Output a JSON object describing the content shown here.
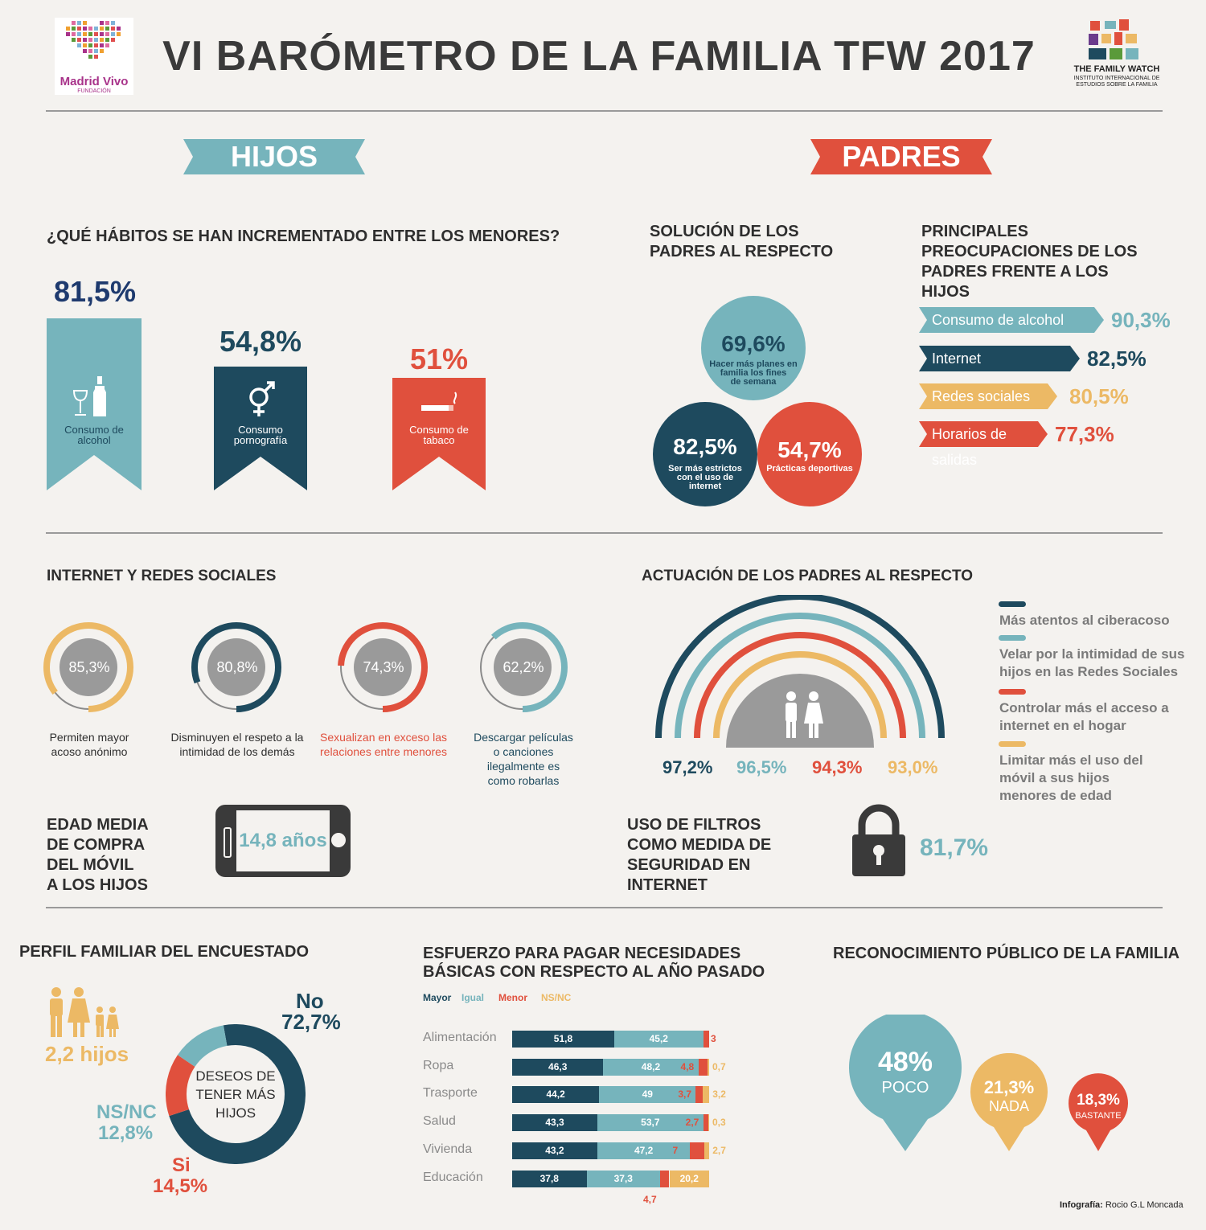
{
  "header": {
    "title": "VI BARÓMETRO DE LA FAMILIA TFW 2017",
    "left_logo": {
      "name": "Madrid Vivo",
      "sub": "FUNDACIÓN"
    },
    "right_logo": {
      "name": "THE FAMILY WATCH",
      "sub1": "INSTITUTO INTERNACIONAL DE",
      "sub2": "ESTUDIOS SOBRE LA FAMILIA"
    }
  },
  "ribbons": {
    "hijos": "HIJOS",
    "padres": "PADRES"
  },
  "habitos": {
    "title": "¿QUÉ HÁBITOS SE HAN INCREMENTADO ENTRE LOS MENORES?",
    "items": [
      {
        "pct": "81,5%",
        "value": 81.5,
        "label1": "Consumo de",
        "label2": "alcohol",
        "icon": "wine-icon",
        "color": "#76b4bc"
      },
      {
        "pct": "54,8%",
        "value": 54.8,
        "label1": "Consumo",
        "label2": "pornografía",
        "icon": "gender-icon",
        "color": "#1e4a5e"
      },
      {
        "pct": "51%",
        "value": 51,
        "label1": "Consumo de",
        "label2": "tabaco",
        "icon": "cigarette-icon",
        "color": "#e0503d"
      }
    ]
  },
  "solucion": {
    "title1": "SOLUCIÓN DE LOS",
    "title2": "PADRES AL RESPECTO",
    "b1": {
      "pct": "69,6%",
      "l1": "Hacer más planes en",
      "l2": "familia los fines",
      "l3": "de semana"
    },
    "b2": {
      "pct": "82,5%",
      "l1": "Ser más estrictos",
      "l2": "con el uso de",
      "l3": "internet"
    },
    "b3": {
      "pct": "54,7%",
      "l1": "Prácticas deportivas"
    }
  },
  "preocupaciones": {
    "title1": "PRINCIPALES",
    "title2": "PREOCUPACIONES DE LOS",
    "title3": "PADRES FRENTE A LOS",
    "title4": "HIJOS",
    "items": [
      {
        "label": "Consumo de alcohol",
        "pct": "90,3%",
        "value": 90.3,
        "color": "#76b4bc"
      },
      {
        "label": "Internet",
        "pct": "82,5%",
        "value": 82.5,
        "color": "#1e4a5e"
      },
      {
        "label": "Redes sociales",
        "pct": "80,5%",
        "value": 80.5,
        "color": "#ecb965"
      },
      {
        "label": "Horarios de salidas",
        "pct": "77,3%",
        "value": 77.3,
        "color": "#e0503d"
      }
    ]
  },
  "internet": {
    "title": "INTERNET Y REDES SOCIALES",
    "rings": [
      {
        "pct": "85,3%",
        "value": 85.3,
        "color": "#ecb965",
        "l1": "Permiten mayor",
        "l2": "acoso anónimo",
        "l3": "",
        "l4": ""
      },
      {
        "pct": "80,8%",
        "value": 80.8,
        "color": "#1e4a5e",
        "l1": "Disminuyen el respeto a la",
        "l2": "intimidad de los demás",
        "l3": "",
        "l4": ""
      },
      {
        "pct": "74,3%",
        "value": 74.3,
        "color": "#e0503d",
        "l1": "Sexualizan en exceso las",
        "l2": "relaciones entre menores",
        "l3": "",
        "l4": ""
      },
      {
        "pct": "62,2%",
        "value": 62.2,
        "color": "#76b4bc",
        "l1": "Descargar películas",
        "l2": "o  canciones",
        "l3": "ilegalmente es",
        "l4": "como robarlas"
      }
    ]
  },
  "edad": {
    "t1": "EDAD MEDIA",
    "t2": "DE COMPRA",
    "t3": "DEL MÓVIL",
    "t4": "A LOS HIJOS",
    "value": "14,8 años"
  },
  "actuacion": {
    "title": "ACTUACIÓN DE LOS PADRES AL RESPECTO",
    "arcs": [
      {
        "pct": "97,2%",
        "value": 97.2,
        "color": "#1e4a5e",
        "label": "Más atentos al ciberacoso"
      },
      {
        "pct": "96,5%",
        "value": 96.5,
        "color": "#76b4bc",
        "label": "Velar por la intimidad de sus hijos en las Redes Sociales"
      },
      {
        "pct": "94,3%",
        "value": 94.3,
        "color": "#e0503d",
        "label": "Controlar más el acceso a internet en el hogar"
      },
      {
        "pct": "93,0%",
        "value": 93.0,
        "color": "#ecb965",
        "label": "Limitar más el uso del móvil a sus hijos menores de edad"
      }
    ],
    "legend_lines": [
      [
        "Más atentos al ciberacoso"
      ],
      [
        "Velar por la intimidad de sus",
        "hijos en las Redes Sociales"
      ],
      [
        "Controlar más el acceso a",
        "internet en el hogar"
      ],
      [
        "Limitar más el uso del",
        "móvil a sus hijos",
        "menores de edad"
      ]
    ]
  },
  "filtros": {
    "t1": "USO DE FILTROS",
    "t2": "COMO MEDIDA DE",
    "t3": "SEGURIDAD EN",
    "t4": "INTERNET",
    "pct": "81,7%"
  },
  "perfil": {
    "title": "PERFIL FAMILIAR DEL ENCUESTADO",
    "hijos": "2,2 hijos",
    "center1": "DESEOS DE",
    "center2": "TENER MÁS",
    "center3": "HIJOS",
    "no_label": "No",
    "no_pct": "72,7%",
    "no_value": 72.7,
    "nsnc_label": "NS/NC",
    "nsnc_pct": "12,8%",
    "nsnc_value": 12.8,
    "si_label": "Si",
    "si_pct": "14,5%",
    "si_value": 14.5
  },
  "chart_data": {
    "type": "bar",
    "title": "ESFUERZO PARA PAGAR NECESIDADES BÁSICAS CON RESPECTO AL AÑO PASADO",
    "title1": "ESFUERZO PARA PAGAR NECESIDADES",
    "title2": "BÁSICAS CON RESPECTO AL AÑO PASADO",
    "stacked": true,
    "orientation": "horizontal",
    "categories": [
      "Alimentación",
      "Ropa",
      "Trasporte",
      "Salud",
      "Vivienda",
      "Educación"
    ],
    "series": [
      {
        "name": "Mayor",
        "color": "#1e4a5e",
        "values": [
          51.8,
          46.3,
          44.2,
          43.3,
          43.2,
          37.8
        ],
        "labels": [
          "51,8",
          "46,3",
          "44,2",
          "43,3",
          "43,2",
          "37,8"
        ]
      },
      {
        "name": "Igual",
        "color": "#76b4bc",
        "values": [
          45.2,
          48.2,
          49,
          53.7,
          47.2,
          37.3
        ],
        "labels": [
          "45,2",
          "48,2",
          "49",
          "53,7",
          "47,2",
          "37,3"
        ]
      },
      {
        "name": "Menor",
        "color": "#e0503d",
        "values": [
          3,
          4.8,
          3.7,
          2.7,
          7,
          4.7
        ],
        "labels": [
          "3",
          "4,8",
          "3,7",
          "2,7",
          "7",
          "4,7"
        ]
      },
      {
        "name": "NS/NC",
        "color": "#ecb965",
        "values": [
          0,
          0.7,
          3.2,
          0.3,
          2.7,
          20.2
        ],
        "labels": [
          "",
          "0,7",
          "3,2",
          "0,3",
          "2,7",
          "20,2"
        ]
      }
    ]
  },
  "reconocimiento": {
    "title": "RECONOCIMIENTO PÚBLICO DE LA FAMILIA",
    "items": [
      {
        "pct": "48%",
        "label": "POCO",
        "value": 48,
        "color": "#76b4bc"
      },
      {
        "pct": "21,3%",
        "label": "NADA",
        "value": 21.3,
        "color": "#ecb965"
      },
      {
        "pct": "18,3%",
        "label": "BASTANTE",
        "value": 18.3,
        "color": "#e0503d"
      }
    ]
  },
  "credit": {
    "label": "Infografía:",
    "name": "Rocio G.L Moncada"
  }
}
